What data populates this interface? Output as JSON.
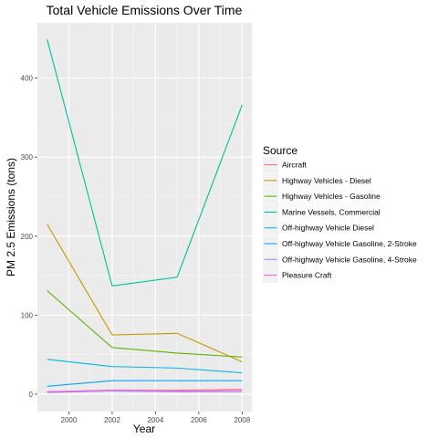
{
  "chart_data": {
    "type": "line",
    "title": "Total Vehicle Emissions Over Time",
    "xlabel": "Year",
    "ylabel": "PM 2.5 Emissions (tons)",
    "xlim": [
      1998.55,
      2008.45
    ],
    "ylim": [
      -22,
      470
    ],
    "xticks": [
      2000,
      2002,
      2004,
      2006,
      2008
    ],
    "yticks": [
      0,
      100,
      200,
      300,
      400
    ],
    "grid": true,
    "legend": {
      "title": "Source",
      "position": "right"
    },
    "x": [
      1999,
      2002,
      2005,
      2008
    ],
    "series": [
      {
        "name": "Aircraft",
        "color": "#F8766D",
        "values": [
          3,
          5,
          5,
          6
        ]
      },
      {
        "name": "Highway Vehicles - Diesel",
        "color": "#C49A00",
        "values": [
          215,
          75,
          77,
          41
        ]
      },
      {
        "name": "Highway Vehicles - Gasoline",
        "color": "#53B400",
        "values": [
          131,
          59,
          52,
          47
        ]
      },
      {
        "name": "Marine Vessels, Commercial",
        "color": "#00C094",
        "values": [
          449,
          137,
          148,
          366
        ]
      },
      {
        "name": "Off-highway Vehicle Diesel",
        "color": "#00B6EB",
        "values": [
          44,
          35,
          33,
          27
        ]
      },
      {
        "name": "Off-highway Vehicle Gasoline, 2-Stroke",
        "color": "#06A4FF",
        "values": [
          10,
          17,
          17,
          17
        ]
      },
      {
        "name": "Off-highway Vehicle Gasoline, 4-Stroke",
        "color": "#A58AFF",
        "values": [
          2,
          4,
          3,
          3
        ]
      },
      {
        "name": "Pleasure Craft",
        "color": "#FB61D7",
        "values": [
          3,
          5,
          4,
          5
        ]
      }
    ]
  }
}
